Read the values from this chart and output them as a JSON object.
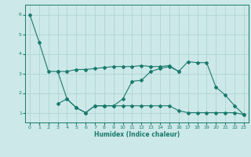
{
  "xlabel": "Humidex (Indice chaleur)",
  "bg_color": "#cce8e8",
  "line_color": "#1a7a6e",
  "grid_color": "#aad0d0",
  "xlim": [
    -0.5,
    23.5
  ],
  "ylim": [
    0.5,
    6.5
  ],
  "yticks": [
    1,
    2,
    3,
    4,
    5,
    6
  ],
  "xticks": [
    0,
    1,
    2,
    3,
    4,
    5,
    6,
    7,
    8,
    9,
    10,
    11,
    12,
    13,
    14,
    15,
    16,
    17,
    18,
    19,
    20,
    21,
    22,
    23
  ],
  "curve1_x": [
    0,
    1,
    2,
    3,
    4,
    5,
    6,
    7,
    8,
    9,
    10,
    11,
    12,
    13,
    14,
    15,
    16,
    17,
    18,
    19,
    20,
    21,
    22,
    23
  ],
  "curve1_y": [
    6.0,
    4.6,
    3.1,
    3.1,
    3.1,
    3.2,
    3.2,
    3.25,
    3.3,
    3.35,
    3.35,
    3.35,
    3.4,
    3.35,
    3.35,
    3.4,
    3.1,
    3.6,
    3.55,
    3.55,
    2.3,
    1.9,
    1.35,
    0.9
  ],
  "curve2_x": [
    3,
    4,
    5,
    6,
    7,
    8,
    9,
    10,
    11,
    12,
    13,
    14,
    15,
    16
  ],
  "curve2_y": [
    3.1,
    1.7,
    1.25,
    1.0,
    1.35,
    1.35,
    1.35,
    1.7,
    2.6,
    2.65,
    3.1,
    3.25,
    3.35,
    3.1
  ],
  "curve3_x": [
    3,
    4,
    5,
    6,
    7,
    8,
    9,
    10,
    11,
    12,
    13,
    14,
    15,
    16,
    17,
    18,
    19,
    20,
    21,
    22,
    23
  ],
  "curve3_y": [
    1.45,
    1.7,
    1.25,
    1.0,
    1.35,
    1.35,
    1.35,
    1.35,
    1.35,
    1.35,
    1.35,
    1.35,
    1.35,
    1.1,
    1.0,
    1.0,
    1.0,
    1.0,
    1.0,
    1.0,
    0.9
  ]
}
